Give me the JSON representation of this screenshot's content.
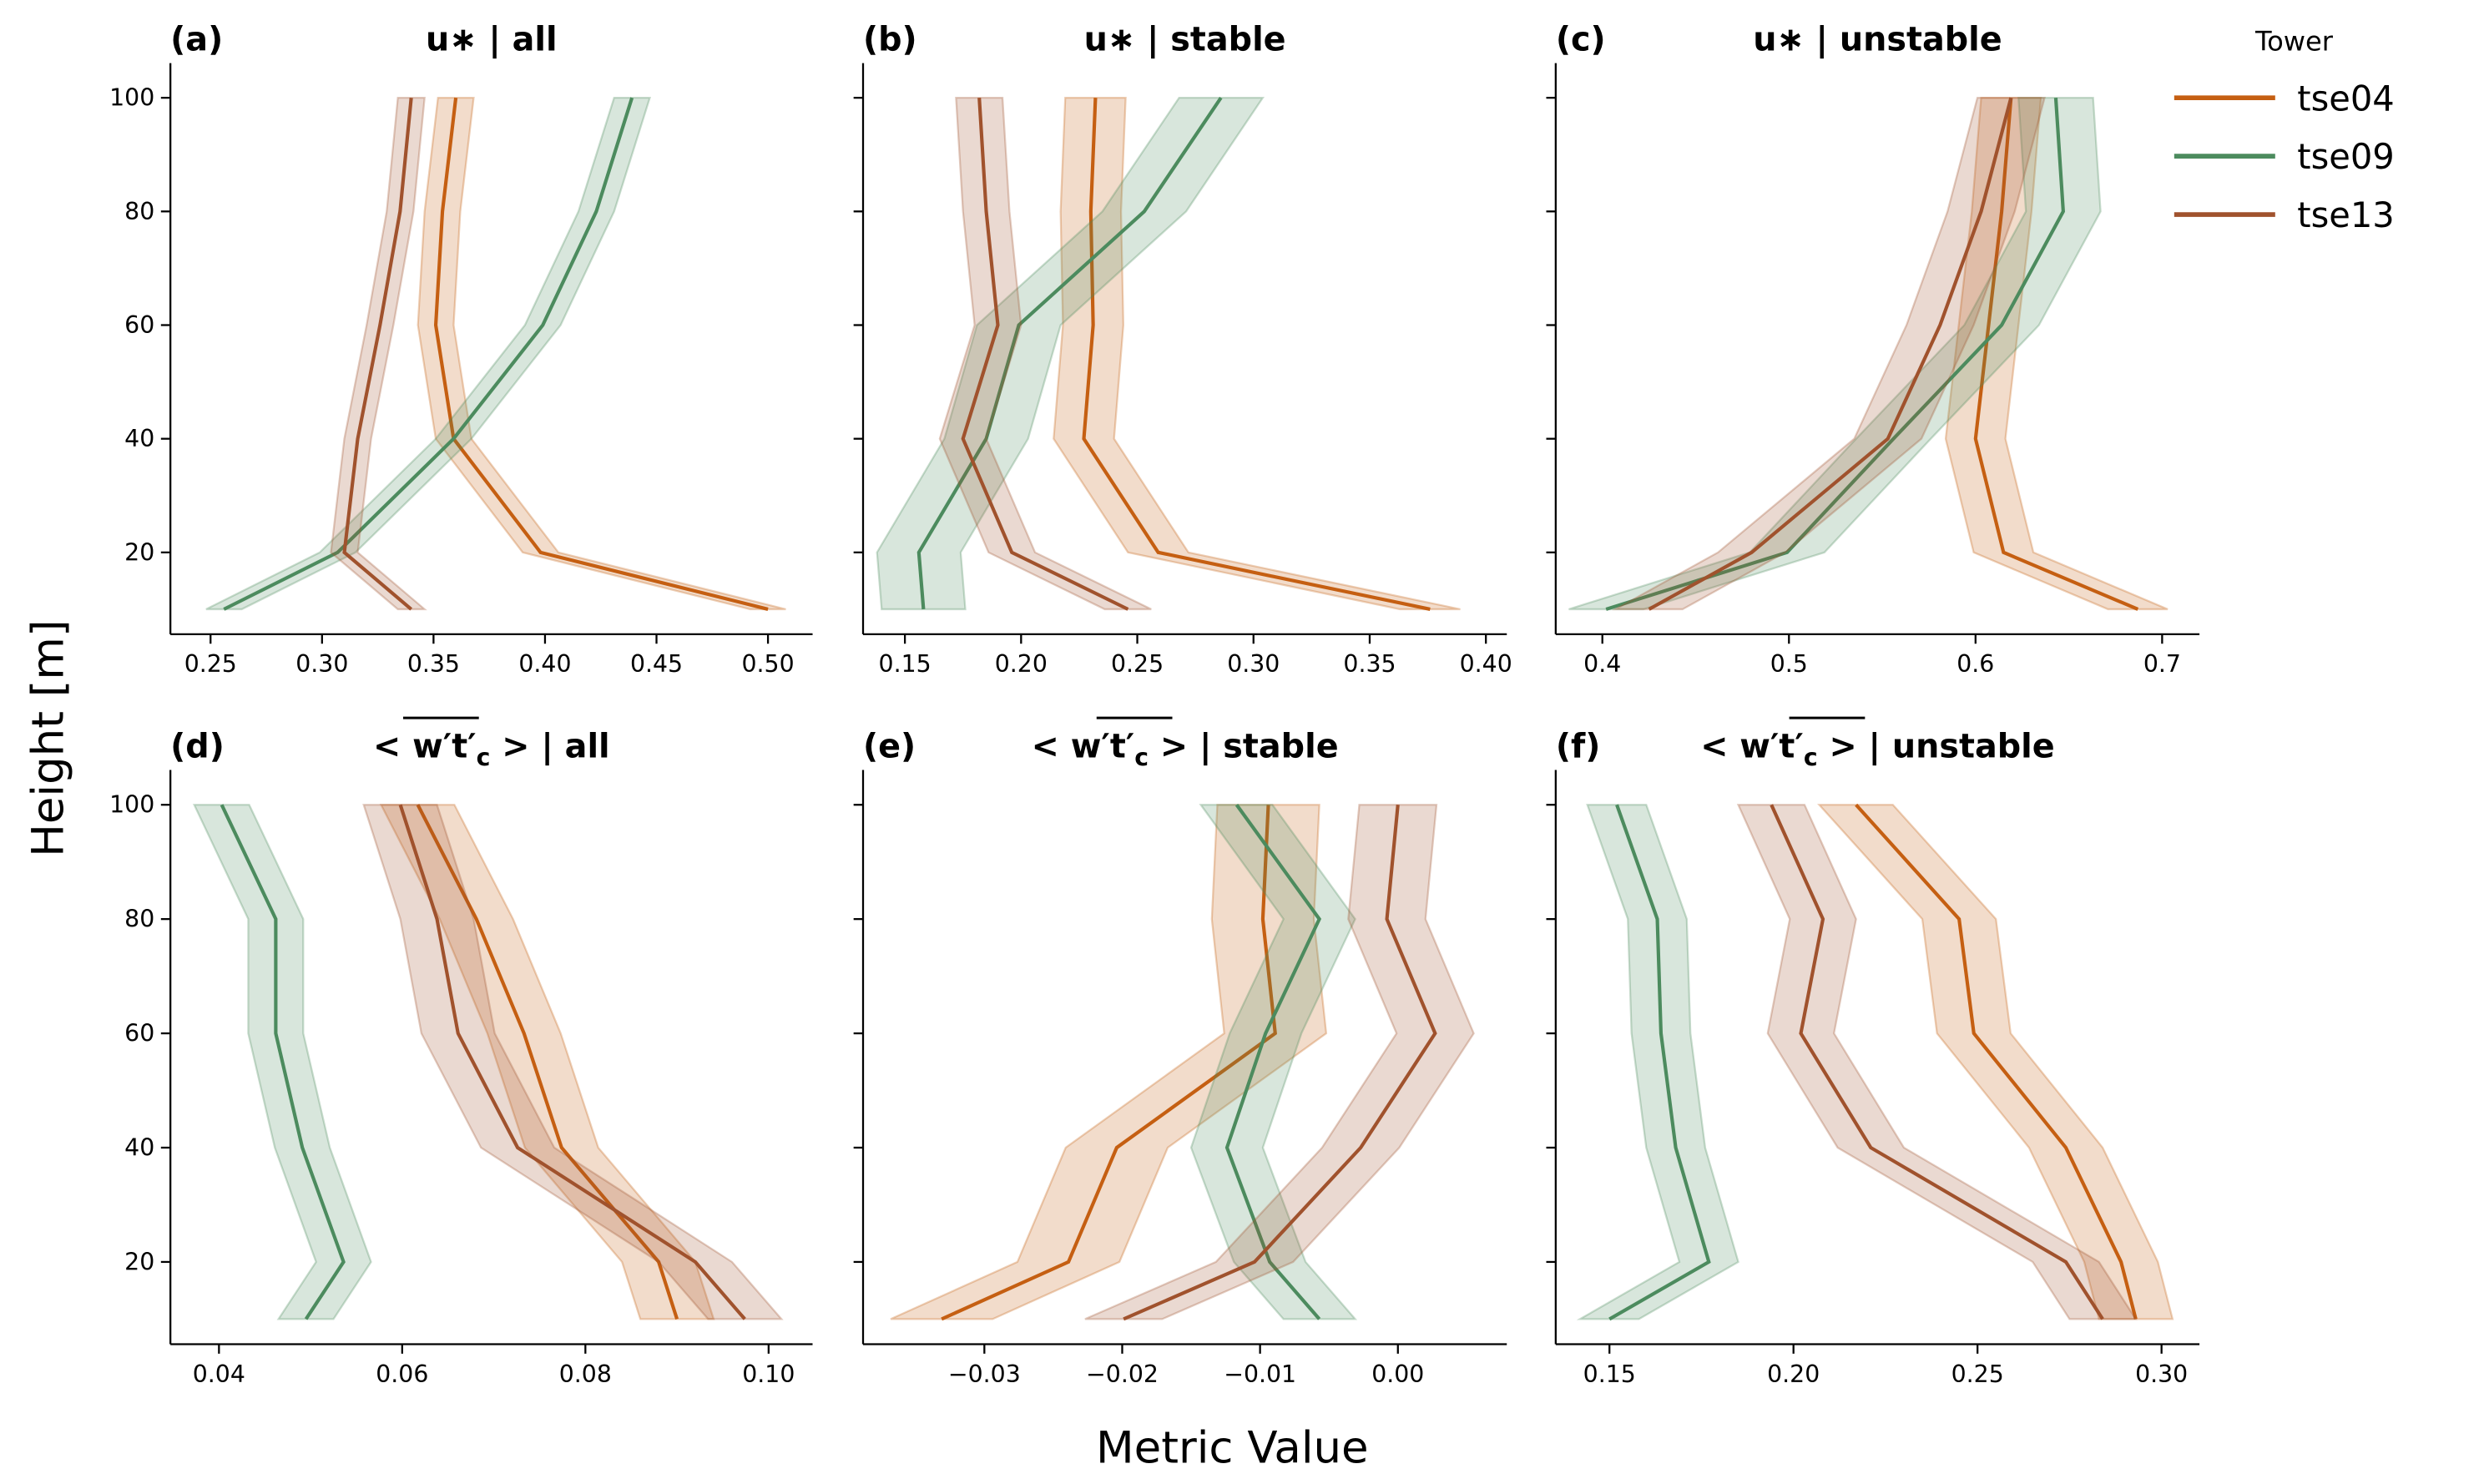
{
  "chart_data": {
    "type": "line",
    "xlabel": "Metric Value",
    "ylabel": "Height [m]",
    "legend": {
      "title": "Tower",
      "placement": "top-right outside",
      "entries": [
        "tse04",
        "tse09",
        "tse13"
      ]
    },
    "colors": {
      "tse04": "#c55f12",
      "tse09": "#4c8b5e",
      "tse13": "#a0522d"
    },
    "heights": [
      10,
      20,
      40,
      60,
      80,
      100
    ],
    "ylim": [
      5.6,
      106.1
    ],
    "yticks": [
      20,
      40,
      60,
      80,
      100
    ],
    "panels": [
      {
        "label": "(a)",
        "metric": "u∗",
        "metric_kind": "ustar",
        "condition": "all",
        "xlim": [
          0.232,
          0.52
        ],
        "xticks": [
          0.25,
          0.3,
          0.35,
          0.4,
          0.45,
          0.5
        ],
        "xtick_labels": [
          "0.25",
          "0.30",
          "0.35",
          "0.40",
          "0.45",
          "0.50"
        ],
        "series": [
          {
            "name": "tse04",
            "values": [
              0.5,
              0.398,
              0.359,
              0.351,
              0.354,
              0.36
            ],
            "ci": 0.008
          },
          {
            "name": "tse09",
            "values": [
              0.256,
              0.307,
              0.359,
              0.399,
              0.423,
              0.439
            ],
            "ci": 0.008
          },
          {
            "name": "tse13",
            "values": [
              0.34,
              0.31,
              0.316,
              0.326,
              0.335,
              0.34
            ],
            "ci": 0.006
          }
        ]
      },
      {
        "label": "(b)",
        "metric": "u∗",
        "metric_kind": "ustar",
        "condition": "stable",
        "xlim": [
          0.132,
          0.409
        ],
        "xticks": [
          0.15,
          0.2,
          0.25,
          0.3,
          0.35,
          0.4
        ],
        "xtick_labels": [
          "0.15",
          "0.20",
          "0.25",
          "0.30",
          "0.35",
          "0.40"
        ],
        "series": [
          {
            "name": "tse04",
            "values": [
              0.376,
              0.259,
              0.227,
              0.231,
              0.23,
              0.232
            ],
            "ci": 0.013
          },
          {
            "name": "tse09",
            "values": [
              0.158,
              0.156,
              0.185,
              0.199,
              0.253,
              0.286
            ],
            "ci": 0.018
          },
          {
            "name": "tse13",
            "values": [
              0.246,
              0.196,
              0.175,
              0.19,
              0.185,
              0.182
            ],
            "ci": 0.01
          }
        ]
      },
      {
        "label": "(c)",
        "metric": "u∗",
        "metric_kind": "ustar",
        "condition": "unstable",
        "xlim": [
          0.375,
          0.72
        ],
        "xticks": [
          0.4,
          0.5,
          0.6,
          0.7
        ],
        "xtick_labels": [
          "0.4",
          "0.5",
          "0.6",
          "0.7"
        ],
        "series": [
          {
            "name": "tse04",
            "values": [
              0.687,
              0.615,
              0.6,
              0.607,
              0.614,
              0.619
            ],
            "ci": 0.016
          },
          {
            "name": "tse09",
            "values": [
              0.402,
              0.499,
              0.556,
              0.614,
              0.647,
              0.643
            ],
            "ci": 0.02
          },
          {
            "name": "tse13",
            "values": [
              0.425,
              0.48,
              0.553,
              0.581,
              0.603,
              0.619
            ],
            "ci": 0.018
          }
        ]
      },
      {
        "label": "(d)",
        "metric": "<w't'_c>",
        "metric_kind": "flux",
        "condition": "all",
        "xlim": [
          0.0347,
          0.1048
        ],
        "xticks": [
          0.04,
          0.06,
          0.08,
          0.1
        ],
        "xtick_labels": [
          "0.04",
          "0.06",
          "0.08",
          "0.10"
        ],
        "series": [
          {
            "name": "tse04",
            "values": [
              0.09,
              0.088,
              0.0774,
              0.0733,
              0.0681,
              0.0617
            ],
            "ci": 0.004
          },
          {
            "name": "tse09",
            "values": [
              0.0495,
              0.0536,
              0.0491,
              0.0462,
              0.0462,
              0.0403
            ],
            "ci": 0.003
          },
          {
            "name": "tse13",
            "values": [
              0.0974,
              0.092,
              0.0726,
              0.0661,
              0.0638,
              0.0598
            ],
            "ci": 0.004
          }
        ]
      },
      {
        "label": "(e)",
        "metric": "<w't'_c>",
        "metric_kind": "flux",
        "condition": "stable",
        "xlim": [
          -0.0388,
          0.0079
        ],
        "xticks": [
          -0.03,
          -0.02,
          -0.01,
          0.0
        ],
        "xtick_labels": [
          "−0.03",
          "−0.02",
          "−0.01",
          "0.00"
        ],
        "series": [
          {
            "name": "tse04",
            "values": [
              -0.0331,
              -0.0239,
              -0.0204,
              -0.0089,
              -0.0098,
              -0.0094
            ],
            "ci": 0.0037
          },
          {
            "name": "tse09",
            "values": [
              -0.0057,
              -0.0093,
              -0.0124,
              -0.0096,
              -0.0057,
              -0.0117
            ],
            "ci": 0.0026
          },
          {
            "name": "tse13",
            "values": [
              -0.0199,
              -0.0104,
              -0.0027,
              0.0027,
              -0.0008,
              0.0
            ],
            "ci": 0.0028
          }
        ]
      },
      {
        "label": "(f)",
        "metric": "<w't'_c>",
        "metric_kind": "flux",
        "condition": "unstable",
        "xlim": [
          0.1354,
          0.3103
        ],
        "xticks": [
          0.15,
          0.2,
          0.25,
          0.3
        ],
        "xtick_labels": [
          "0.15",
          "0.20",
          "0.25",
          "0.30"
        ],
        "series": [
          {
            "name": "tse04",
            "values": [
              0.293,
              0.289,
              0.274,
              0.249,
              0.245,
              0.217
            ],
            "ci": 0.01
          },
          {
            "name": "tse09",
            "values": [
              0.15,
              0.177,
              0.168,
              0.164,
              0.163,
              0.152
            ],
            "ci": 0.008
          },
          {
            "name": "tse13",
            "values": [
              0.284,
              0.274,
              0.221,
              0.202,
              0.208,
              0.194
            ],
            "ci": 0.009
          }
        ]
      }
    ]
  }
}
